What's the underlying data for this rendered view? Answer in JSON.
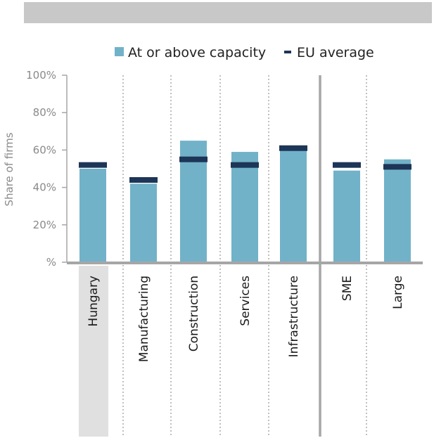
{
  "colors": {
    "bar": "#71b2c9",
    "eu_marker": "#1d3557",
    "highlight": "#e0e0e0",
    "banner": "#c8c8c8",
    "axis": "#a6a6a6"
  },
  "chart_data": {
    "type": "bar",
    "categories": [
      "Hungary",
      "Manufacturing",
      "Construction",
      "Services",
      "Infrastructure",
      "SME",
      "Large"
    ],
    "series": [
      {
        "name": "At or above capacity",
        "values": [
          50,
          42,
          65,
          59,
          60,
          49,
          55
        ]
      },
      {
        "name": "EU average",
        "values": [
          52,
          44,
          55,
          52,
          61,
          52,
          51
        ]
      }
    ],
    "ylabel": "Share of firms",
    "ylim": [
      0,
      100
    ],
    "yticks": [
      {
        "value": 100,
        "label": "100%"
      },
      {
        "value": 80,
        "label": "80%"
      },
      {
        "value": 60,
        "label": "60%"
      },
      {
        "value": 40,
        "label": "40%"
      },
      {
        "value": 20,
        "label": "20%"
      },
      {
        "value": 0,
        "label": "%"
      }
    ],
    "grid": false,
    "legend": "top-center"
  }
}
